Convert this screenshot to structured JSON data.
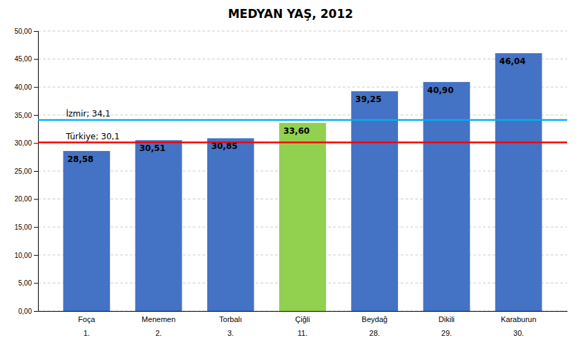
{
  "chart_data": {
    "type": "bar",
    "title": "MEDYAN YAŞ, 2012",
    "categories": [
      "Foça",
      "Menemen",
      "Torbalı",
      "Çiğli",
      "Beydağ",
      "Dikili",
      "Karaburun"
    ],
    "ranks": [
      "1.",
      "2.",
      "3.",
      "11.",
      "28.",
      "29.",
      "30."
    ],
    "values": [
      28.58,
      30.51,
      30.85,
      33.6,
      39.25,
      40.9,
      46.04
    ],
    "value_labels": [
      "28,58",
      "30,51",
      "30,85",
      "33,60",
      "39,25",
      "40,90",
      "46,04"
    ],
    "data_labels": true,
    "colors": [
      "#4472C4",
      "#4472C4",
      "#4472C4",
      "#92D050",
      "#4472C4",
      "#4472C4",
      "#4472C4"
    ],
    "reference_lines": [
      {
        "value": 34.1,
        "label": "İzmir; 34,1",
        "color": "#00B0F0"
      },
      {
        "value": 30.1,
        "label": "Türkiye; 30,1",
        "color": "#FF0000"
      }
    ],
    "ylim": [
      0,
      50
    ],
    "yticks": [
      {
        "value": 0,
        "label": "0,00"
      },
      {
        "value": 5,
        "label": "5,00"
      },
      {
        "value": 10,
        "label": "10,00"
      },
      {
        "value": 15,
        "label": "15,00"
      },
      {
        "value": 20,
        "label": "20,00"
      },
      {
        "value": 25,
        "label": "25,00"
      },
      {
        "value": 30,
        "label": "30,00"
      },
      {
        "value": 35,
        "label": "35,00"
      },
      {
        "value": 40,
        "label": "40,00"
      },
      {
        "value": 45,
        "label": "45,00"
      },
      {
        "value": 50,
        "label": "50,00"
      }
    ],
    "grid": true
  }
}
